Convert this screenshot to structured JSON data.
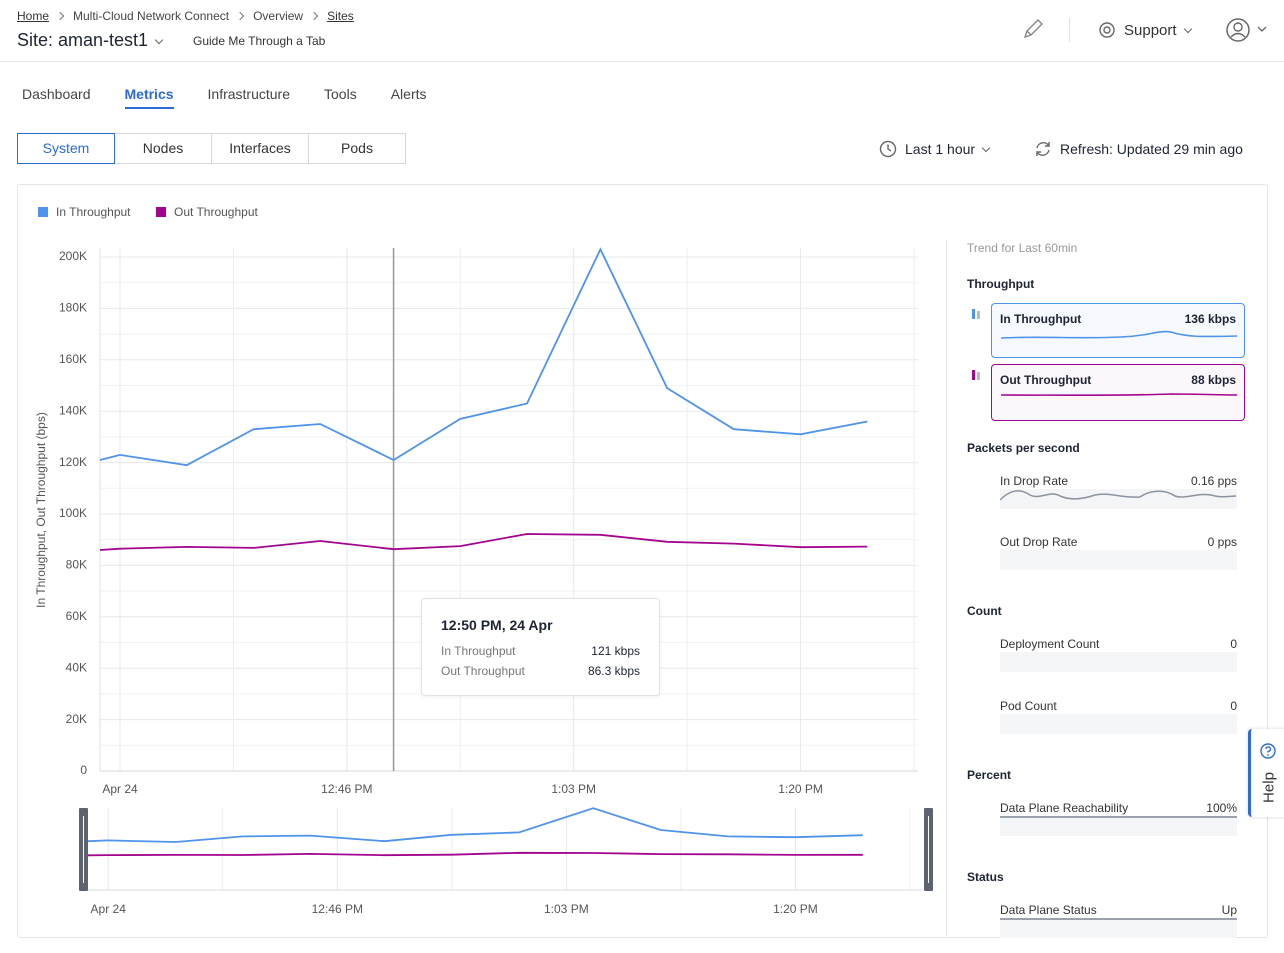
{
  "header": {
    "breadcrumb": [
      "Home",
      "Multi-Cloud Network Connect",
      "Overview",
      "Sites"
    ],
    "site_title": "Site: aman-test1",
    "guide": "Guide Me Through a Tab",
    "support": "Support"
  },
  "tabs": [
    "Dashboard",
    "Metrics",
    "Infrastructure",
    "Tools",
    "Alerts"
  ],
  "subtabs": [
    "System",
    "Nodes",
    "Interfaces",
    "Pods"
  ],
  "time_range": "Last 1 hour",
  "refresh": "Refresh: Updated 29 min ago",
  "chart_data": {
    "type": "line",
    "y_label": "In Throughput, Out Throughput (bps)",
    "x": [
      747.5,
      749,
      754,
      759,
      764,
      769.5,
      774.5,
      779.5,
      785,
      790,
      795,
      800,
      805
    ],
    "xlim": [
      747.5,
      808.8
    ],
    "xticks": [
      {
        "value": 749,
        "label": "Apr 24"
      },
      {
        "value": 766,
        "label": "12:46 PM"
      },
      {
        "value": 783,
        "label": "1:03 PM"
      },
      {
        "value": 800,
        "label": "1:20 PM"
      }
    ],
    "ylim": [
      0,
      203500
    ],
    "yticks": [
      0,
      {
        "value": 20000,
        "label": "20K"
      },
      {
        "value": 40000,
        "label": "40K"
      },
      {
        "value": 60000,
        "label": "60K"
      },
      {
        "value": 80000,
        "label": "80K"
      },
      {
        "value": 100000,
        "label": "100K"
      },
      {
        "value": 120000,
        "label": "120K"
      },
      {
        "value": 140000,
        "label": "140K"
      },
      {
        "value": 160000,
        "label": "160K"
      },
      {
        "value": 180000,
        "label": "180K"
      },
      {
        "value": 200000,
        "label": "200K"
      }
    ],
    "grid": true,
    "series": [
      {
        "name": "In Throughput",
        "color": "#4f93ea",
        "values": [
          121000,
          123000,
          119000,
          133000,
          135000,
          121000,
          137000,
          143000,
          203000,
          149000,
          133000,
          131000,
          136000
        ]
      },
      {
        "name": "Out Throughput",
        "color": "#a3058f",
        "values": [
          86000,
          86500,
          87200,
          86800,
          89500,
          86300,
          87500,
          92200,
          91900,
          89200,
          88500,
          87100,
          87300
        ]
      }
    ]
  },
  "tooltip": {
    "title": "12:50 PM, 24 Apr",
    "rows": [
      {
        "name": "In Throughput",
        "value": "121 kbps"
      },
      {
        "name": "Out Throughput",
        "value": "86.3 kbps"
      }
    ]
  },
  "side_panel": {
    "caption": "Trend for Last 60min",
    "sections": [
      {
        "title": "Throughput",
        "items": [
          {
            "name": "In Throughput",
            "value": "136 kbps"
          },
          {
            "name": "Out Throughput",
            "value": "88 kbps"
          }
        ]
      },
      {
        "title": "Packets per second",
        "items": [
          {
            "name": "In Drop Rate",
            "value": "0.16 pps"
          },
          {
            "name": "Out Drop Rate",
            "value": "0 pps"
          }
        ]
      },
      {
        "title": "Count",
        "items": [
          {
            "name": "Deployment Count",
            "value": "0"
          },
          {
            "name": "Pod Count",
            "value": "0"
          }
        ]
      },
      {
        "title": "Percent",
        "items": [
          {
            "name": "Data Plane Reachability",
            "value": "100%"
          }
        ]
      },
      {
        "title": "Status",
        "items": [
          {
            "name": "Data Plane Status",
            "value": "Up"
          }
        ]
      }
    ]
  },
  "help": "Help"
}
